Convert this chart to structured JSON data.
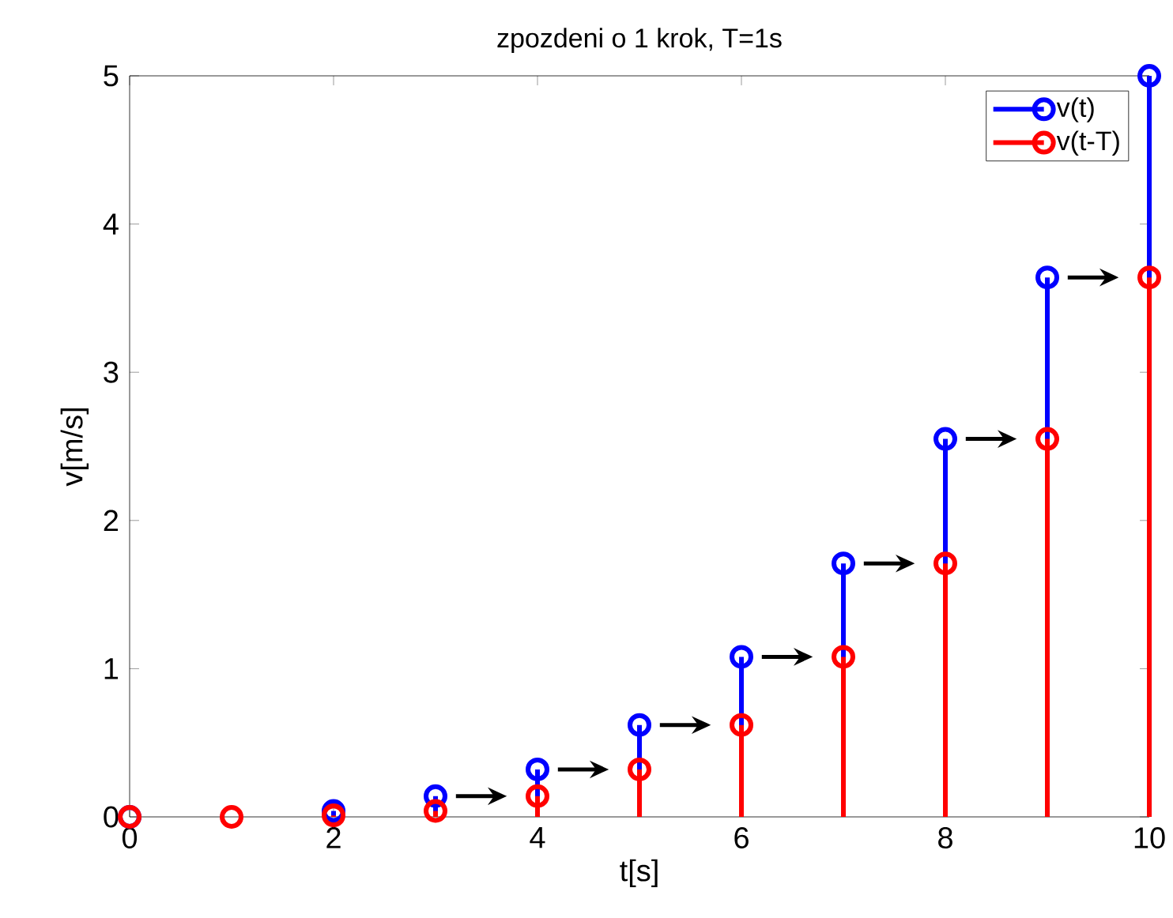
{
  "chart_data": {
    "type": "lollipop",
    "title": "zpozdeni o 1 krok, T=1s",
    "xlabel": "t[s]",
    "ylabel": "v[m/s]",
    "x": [
      0,
      1,
      2,
      3,
      4,
      5,
      6,
      7,
      8,
      9,
      10
    ],
    "series": [
      {
        "name": "v(t)",
        "color": "#0000ff",
        "values": [
          0,
          null,
          0.04,
          0.14,
          0.32,
          0.62,
          1.08,
          1.71,
          2.55,
          3.64,
          5.0
        ]
      },
      {
        "name": "v(t-T)",
        "color": "#ff0000",
        "values": [
          0,
          0,
          0.01,
          0.04,
          0.14,
          0.32,
          0.62,
          1.08,
          1.71,
          2.55,
          3.64
        ]
      }
    ],
    "xlim": [
      0,
      10
    ],
    "ylim": [
      0,
      5
    ],
    "xticks": [
      0,
      2,
      4,
      6,
      8,
      10
    ],
    "yticks": [
      0,
      1,
      2,
      3,
      4,
      5
    ],
    "marker": "circle",
    "legend": "top right",
    "grid": false
  }
}
